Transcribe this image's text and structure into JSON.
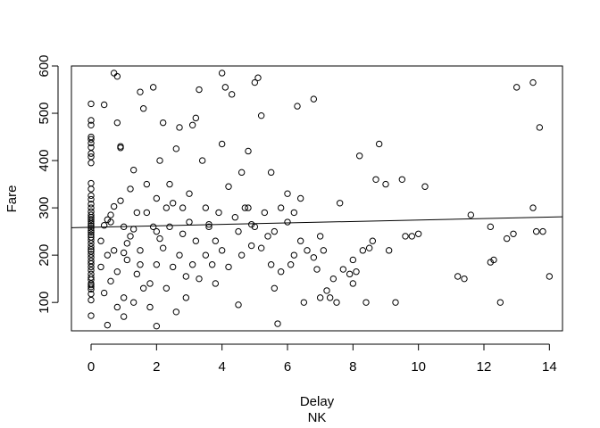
{
  "chart_data": {
    "type": "scatter",
    "xlabel": "Delay",
    "subtitle": "NK",
    "ylabel": "Fare",
    "xlim": [
      -0.6,
      14.4
    ],
    "ylim": [
      40,
      600
    ],
    "xticks": [
      0,
      2,
      4,
      6,
      8,
      10,
      12,
      14
    ],
    "yticks": [
      100,
      200,
      300,
      400,
      500,
      600
    ],
    "grid": false,
    "legend": "none",
    "marker": "open-circle",
    "regression_line": {
      "x0": -0.6,
      "y0": 258,
      "x1": 14.4,
      "y1": 281
    },
    "series": [
      {
        "points": [
          [
            0,
            72
          ],
          [
            0,
            105
          ],
          [
            0,
            118
          ],
          [
            0,
            128
          ],
          [
            0,
            133
          ],
          [
            0,
            137
          ],
          [
            0,
            140
          ],
          [
            0,
            148
          ],
          [
            0,
            153
          ],
          [
            0,
            160
          ],
          [
            0,
            168
          ],
          [
            0,
            175
          ],
          [
            0,
            182
          ],
          [
            0,
            188
          ],
          [
            0,
            195
          ],
          [
            0,
            202
          ],
          [
            0,
            208
          ],
          [
            0,
            212
          ],
          [
            0,
            218
          ],
          [
            0,
            225
          ],
          [
            0,
            232
          ],
          [
            0,
            238
          ],
          [
            0,
            243
          ],
          [
            0,
            248
          ],
          [
            0,
            252
          ],
          [
            0,
            257
          ],
          [
            0,
            262
          ],
          [
            0,
            267
          ],
          [
            0,
            272
          ],
          [
            0,
            276
          ],
          [
            0,
            280
          ],
          [
            0,
            285
          ],
          [
            0,
            292
          ],
          [
            0,
            300
          ],
          [
            0,
            308
          ],
          [
            0,
            318
          ],
          [
            0,
            326
          ],
          [
            0,
            340
          ],
          [
            0,
            352
          ],
          [
            0,
            395
          ],
          [
            0,
            408
          ],
          [
            0,
            415
          ],
          [
            0,
            428
          ],
          [
            0,
            437
          ],
          [
            0,
            445
          ],
          [
            0,
            450
          ],
          [
            0,
            475
          ],
          [
            0,
            485
          ],
          [
            0,
            520
          ],
          [
            0.4,
            518
          ],
          [
            0.4,
            263
          ],
          [
            0.5,
            275
          ],
          [
            0.5,
            200
          ],
          [
            0.6,
            285
          ],
          [
            0.7,
            303
          ],
          [
            0.7,
            585
          ],
          [
            0.8,
            578
          ],
          [
            0.8,
            480
          ],
          [
            0.9,
            430
          ],
          [
            0.9,
            427
          ],
          [
            1.0,
            205
          ],
          [
            1.0,
            260
          ],
          [
            1.1,
            225
          ],
          [
            1.2,
            340
          ],
          [
            1.3,
            255
          ],
          [
            1.4,
            160
          ],
          [
            1.5,
            180
          ],
          [
            1.5,
            545
          ],
          [
            1.6,
            510
          ],
          [
            1.7,
            290
          ],
          [
            1.8,
            140
          ],
          [
            1.9,
            555
          ],
          [
            2.0,
            320
          ],
          [
            2.0,
            250
          ],
          [
            2.1,
            235
          ],
          [
            2.2,
            480
          ],
          [
            2.3,
            300
          ],
          [
            2.4,
            350
          ],
          [
            2.5,
            175
          ],
          [
            2.6,
            425
          ],
          [
            2.7,
            470
          ],
          [
            2.8,
            300
          ],
          [
            2.9,
            155
          ],
          [
            3.0,
            270
          ],
          [
            3.1,
            475
          ],
          [
            3.2,
            490
          ],
          [
            3.3,
            550
          ],
          [
            3.5,
            300
          ],
          [
            3.6,
            260
          ],
          [
            3.8,
            140
          ],
          [
            3.9,
            290
          ],
          [
            4.0,
            585
          ],
          [
            4.0,
            435
          ],
          [
            4.1,
            555
          ],
          [
            4.2,
            345
          ],
          [
            4.3,
            540
          ],
          [
            4.5,
            250
          ],
          [
            4.6,
            375
          ],
          [
            4.7,
            300
          ],
          [
            4.8,
            420
          ],
          [
            4.9,
            265
          ],
          [
            5.0,
            565
          ],
          [
            5.1,
            575
          ],
          [
            5.2,
            495
          ],
          [
            5.4,
            240
          ],
          [
            5.5,
            375
          ],
          [
            5.6,
            130
          ],
          [
            5.7,
            55
          ],
          [
            5.8,
            300
          ],
          [
            6.0,
            330
          ],
          [
            6.2,
            200
          ],
          [
            6.3,
            515
          ],
          [
            6.4,
            320
          ],
          [
            6.5,
            100
          ],
          [
            6.8,
            530
          ],
          [
            6.9,
            170
          ],
          [
            7.0,
            110
          ],
          [
            7.1,
            210
          ],
          [
            7.3,
            110
          ],
          [
            7.5,
            100
          ],
          [
            7.6,
            310
          ],
          [
            7.9,
            160
          ],
          [
            8.0,
            140
          ],
          [
            8.1,
            165
          ],
          [
            8.2,
            410
          ],
          [
            8.3,
            210
          ],
          [
            8.4,
            100
          ],
          [
            8.6,
            230
          ],
          [
            8.7,
            360
          ],
          [
            8.8,
            435
          ],
          [
            9.0,
            350
          ],
          [
            9.1,
            210
          ],
          [
            9.3,
            100
          ],
          [
            9.5,
            360
          ],
          [
            9.6,
            240
          ],
          [
            9.8,
            240
          ],
          [
            10.0,
            245
          ],
          [
            10.2,
            345
          ],
          [
            11.2,
            155
          ],
          [
            11.4,
            150
          ],
          [
            11.6,
            285
          ],
          [
            12.2,
            185
          ],
          [
            12.2,
            260
          ],
          [
            12.3,
            190
          ],
          [
            12.5,
            100
          ],
          [
            12.7,
            235
          ],
          [
            12.9,
            245
          ],
          [
            13.0,
            555
          ],
          [
            13.5,
            300
          ],
          [
            13.5,
            565
          ],
          [
            13.6,
            250
          ],
          [
            13.7,
            470
          ],
          [
            13.8,
            250
          ],
          [
            14.0,
            155
          ],
          [
            0.3,
            230
          ],
          [
            0.3,
            175
          ],
          [
            0.4,
            120
          ],
          [
            0.5,
            52
          ],
          [
            0.6,
            270
          ],
          [
            0.6,
            145
          ],
          [
            0.7,
            210
          ],
          [
            0.8,
            90
          ],
          [
            0.8,
            165
          ],
          [
            0.9,
            315
          ],
          [
            1.0,
            110
          ],
          [
            1.0,
            70
          ],
          [
            1.1,
            190
          ],
          [
            1.2,
            240
          ],
          [
            1.3,
            380
          ],
          [
            1.3,
            100
          ],
          [
            1.4,
            290
          ],
          [
            1.5,
            210
          ],
          [
            1.6,
            130
          ],
          [
            1.7,
            350
          ],
          [
            1.8,
            90
          ],
          [
            1.9,
            260
          ],
          [
            2.0,
            180
          ],
          [
            2.0,
            50
          ],
          [
            2.1,
            400
          ],
          [
            2.2,
            215
          ],
          [
            2.3,
            130
          ],
          [
            2.4,
            260
          ],
          [
            2.5,
            310
          ],
          [
            2.6,
            80
          ],
          [
            2.7,
            200
          ],
          [
            2.8,
            245
          ],
          [
            2.9,
            110
          ],
          [
            3.0,
            330
          ],
          [
            3.1,
            180
          ],
          [
            3.2,
            230
          ],
          [
            3.3,
            150
          ],
          [
            3.4,
            400
          ],
          [
            3.5,
            200
          ],
          [
            3.6,
            265
          ],
          [
            3.7,
            180
          ],
          [
            3.8,
            230
          ],
          [
            4.0,
            210
          ],
          [
            4.2,
            175
          ],
          [
            4.4,
            280
          ],
          [
            4.5,
            95
          ],
          [
            4.6,
            200
          ],
          [
            4.8,
            300
          ],
          [
            4.9,
            220
          ],
          [
            5.0,
            260
          ],
          [
            5.2,
            215
          ],
          [
            5.3,
            290
          ],
          [
            5.5,
            180
          ],
          [
            5.6,
            250
          ],
          [
            5.8,
            165
          ],
          [
            6.0,
            270
          ],
          [
            6.1,
            180
          ],
          [
            6.2,
            290
          ],
          [
            6.4,
            230
          ],
          [
            6.6,
            210
          ],
          [
            6.8,
            195
          ],
          [
            7.0,
            240
          ],
          [
            7.2,
            125
          ],
          [
            7.4,
            150
          ],
          [
            7.7,
            170
          ],
          [
            8.0,
            190
          ],
          [
            8.5,
            215
          ]
        ]
      }
    ]
  }
}
